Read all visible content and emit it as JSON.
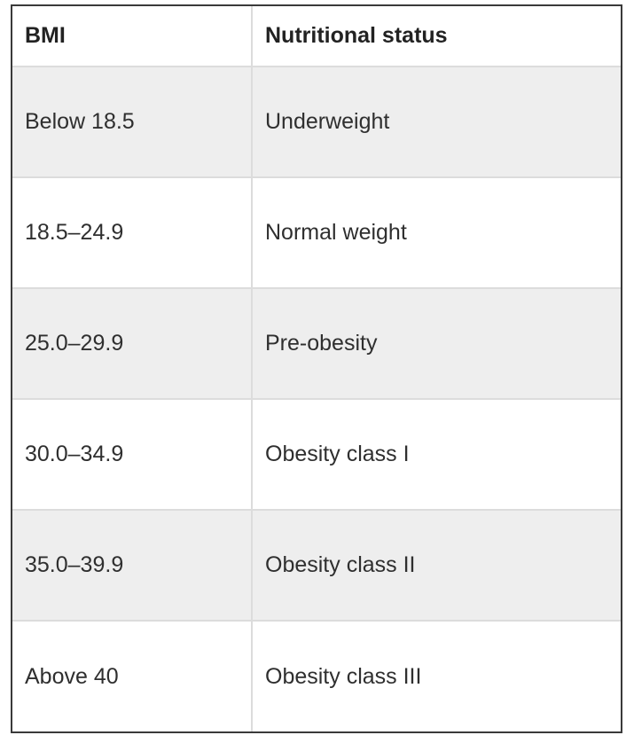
{
  "table": {
    "headers": [
      "BMI",
      "Nutritional status"
    ],
    "rows": [
      [
        "Below 18.5",
        "Underweight"
      ],
      [
        "18.5–24.9",
        "Normal weight"
      ],
      [
        "25.0–29.9",
        "Pre-obesity"
      ],
      [
        "30.0–34.9",
        "Obesity class I"
      ],
      [
        "35.0–39.9",
        "Obesity class II"
      ],
      [
        "Above 40",
        "Obesity class III"
      ]
    ]
  }
}
